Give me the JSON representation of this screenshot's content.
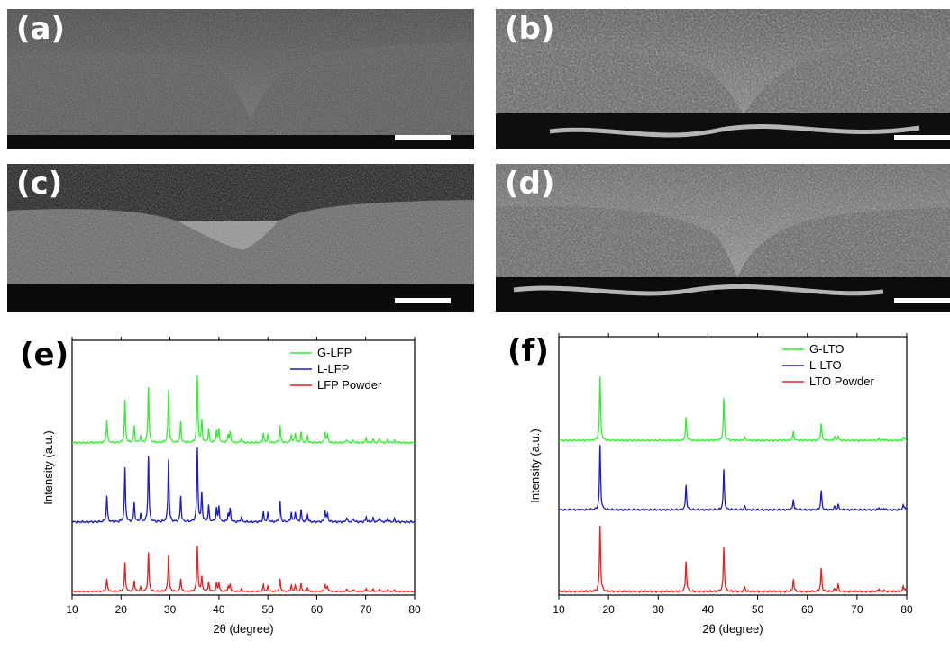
{
  "sem_panels": [
    {
      "label": "(a)"
    },
    {
      "label": "(b)"
    },
    {
      "label": "(c)"
    },
    {
      "label": "(d)"
    }
  ],
  "colors": {
    "green": "#33ee33",
    "blue": "#1a1acc",
    "red": "#e62020"
  },
  "chart_data": [
    {
      "panel_label": "(e)",
      "type": "line",
      "xlabel": "2θ (degree)",
      "ylabel": "Intensity (a.u.)",
      "xlim": [
        10,
        80
      ],
      "xticks": [
        10,
        20,
        30,
        40,
        50,
        60,
        70,
        80
      ],
      "legend_position": "top-right",
      "series": [
        {
          "name": "G-LFP",
          "color": "#33ee33",
          "offset": 0.61,
          "scale": 0.27,
          "peaks": [
            [
              17.1,
              0.35
            ],
            [
              20.8,
              0.64
            ],
            [
              22.7,
              0.24
            ],
            [
              24.0,
              0.1
            ],
            [
              25.6,
              0.84
            ],
            [
              29.7,
              0.8
            ],
            [
              32.2,
              0.31
            ],
            [
              35.6,
              1.0
            ],
            [
              36.5,
              0.33
            ],
            [
              37.9,
              0.21
            ],
            [
              39.5,
              0.18
            ],
            [
              40.0,
              0.2
            ],
            [
              41.9,
              0.12
            ],
            [
              42.3,
              0.15
            ],
            [
              44.6,
              0.07
            ],
            [
              49.1,
              0.14
            ],
            [
              50.0,
              0.12
            ],
            [
              52.5,
              0.26
            ],
            [
              54.8,
              0.12
            ],
            [
              55.6,
              0.15
            ],
            [
              56.8,
              0.16
            ],
            [
              58.1,
              0.1
            ],
            [
              61.7,
              0.17
            ],
            [
              62.2,
              0.11
            ],
            [
              66.1,
              0.05
            ],
            [
              67.5,
              0.04
            ],
            [
              70.1,
              0.07
            ],
            [
              71.5,
              0.05
            ],
            [
              72.8,
              0.07
            ],
            [
              74.5,
              0.05
            ],
            [
              75.9,
              0.03
            ]
          ]
        },
        {
          "name": "L-LFP",
          "color": "#1a1acc",
          "offset": 0.285,
          "scale": 0.3,
          "peaks": [
            [
              17.1,
              0.36
            ],
            [
              20.8,
              0.73
            ],
            [
              22.7,
              0.26
            ],
            [
              24.0,
              0.1
            ],
            [
              25.6,
              0.9
            ],
            [
              29.7,
              0.86
            ],
            [
              32.2,
              0.35
            ],
            [
              35.6,
              1.0
            ],
            [
              36.5,
              0.39
            ],
            [
              37.9,
              0.22
            ],
            [
              39.5,
              0.18
            ],
            [
              40.0,
              0.21
            ],
            [
              41.9,
              0.11
            ],
            [
              42.3,
              0.17
            ],
            [
              44.6,
              0.07
            ],
            [
              49.1,
              0.13
            ],
            [
              50.0,
              0.12
            ],
            [
              52.5,
              0.27
            ],
            [
              54.8,
              0.13
            ],
            [
              55.6,
              0.14
            ],
            [
              56.8,
              0.16
            ],
            [
              58.1,
              0.1
            ],
            [
              61.7,
              0.16
            ],
            [
              62.2,
              0.11
            ],
            [
              66.1,
              0.06
            ],
            [
              67.5,
              0.05
            ],
            [
              70.1,
              0.07
            ],
            [
              71.5,
              0.05
            ],
            [
              72.8,
              0.06
            ],
            [
              74.5,
              0.05
            ],
            [
              75.9,
              0.04
            ]
          ]
        },
        {
          "name": "LFP Powder",
          "color": "#e62020",
          "offset": 0.0,
          "scale": 0.185,
          "peaks": [
            [
              17.1,
              0.28
            ],
            [
              20.8,
              0.64
            ],
            [
              22.7,
              0.24
            ],
            [
              24.0,
              0.09
            ],
            [
              25.6,
              0.86
            ],
            [
              29.7,
              0.82
            ],
            [
              32.2,
              0.28
            ],
            [
              35.6,
              1.0
            ],
            [
              36.5,
              0.33
            ],
            [
              37.9,
              0.2
            ],
            [
              39.5,
              0.18
            ],
            [
              40.0,
              0.2
            ],
            [
              41.9,
              0.1
            ],
            [
              42.3,
              0.15
            ],
            [
              44.6,
              0.06
            ],
            [
              49.1,
              0.14
            ],
            [
              50.0,
              0.11
            ],
            [
              52.5,
              0.27
            ],
            [
              54.8,
              0.13
            ],
            [
              55.6,
              0.14
            ],
            [
              56.8,
              0.17
            ],
            [
              58.1,
              0.08
            ],
            [
              61.7,
              0.16
            ],
            [
              62.2,
              0.11
            ],
            [
              66.1,
              0.05
            ],
            [
              67.5,
              0.05
            ],
            [
              70.1,
              0.07
            ],
            [
              71.5,
              0.05
            ],
            [
              72.8,
              0.06
            ],
            [
              74.5,
              0.04
            ],
            [
              75.9,
              0.03
            ]
          ]
        }
      ]
    },
    {
      "panel_label": "(f)",
      "type": "line",
      "xlabel": "2θ (degree)",
      "ylabel": "Intensity (a.u.)",
      "xlim": [
        10,
        80
      ],
      "xticks": [
        10,
        20,
        30,
        40,
        50,
        60,
        70,
        80
      ],
      "legend_position": "top-right",
      "series": [
        {
          "name": "G-LTO",
          "color": "#33ee33",
          "offset": 0.61,
          "scale": 0.255,
          "peaks": [
            [
              18.3,
              1.0
            ],
            [
              35.6,
              0.36
            ],
            [
              43.2,
              0.66
            ],
            [
              47.4,
              0.06
            ],
            [
              57.2,
              0.14
            ],
            [
              62.8,
              0.27
            ],
            [
              65.5,
              0.06
            ],
            [
              66.2,
              0.07
            ],
            [
              74.4,
              0.03
            ],
            [
              75.4,
              0.02
            ],
            [
              79.3,
              0.03
            ],
            [
              79.6,
              0.04
            ]
          ]
        },
        {
          "name": "L-LTO",
          "color": "#1a1acc",
          "offset": 0.33,
          "scale": 0.26,
          "peaks": [
            [
              18.3,
              1.0
            ],
            [
              35.6,
              0.38
            ],
            [
              43.2,
              0.62
            ],
            [
              47.4,
              0.06
            ],
            [
              57.2,
              0.16
            ],
            [
              62.8,
              0.3
            ],
            [
              65.5,
              0.05
            ],
            [
              66.2,
              0.08
            ],
            [
              74.4,
              0.03
            ],
            [
              75.4,
              0.02
            ],
            [
              79.3,
              0.06
            ],
            [
              79.6,
              0.04
            ]
          ]
        },
        {
          "name": "LTO Powder",
          "color": "#e62020",
          "offset": 0.0,
          "scale": 0.265,
          "peaks": [
            [
              18.3,
              1.0
            ],
            [
              35.6,
              0.46
            ],
            [
              43.2,
              0.67
            ],
            [
              47.4,
              0.07
            ],
            [
              57.2,
              0.19
            ],
            [
              62.8,
              0.35
            ],
            [
              65.5,
              0.04
            ],
            [
              66.2,
              0.1
            ],
            [
              74.4,
              0.04
            ],
            [
              75.4,
              0.02
            ],
            [
              79.3,
              0.07
            ],
            [
              79.6,
              0.04
            ]
          ]
        }
      ]
    }
  ]
}
